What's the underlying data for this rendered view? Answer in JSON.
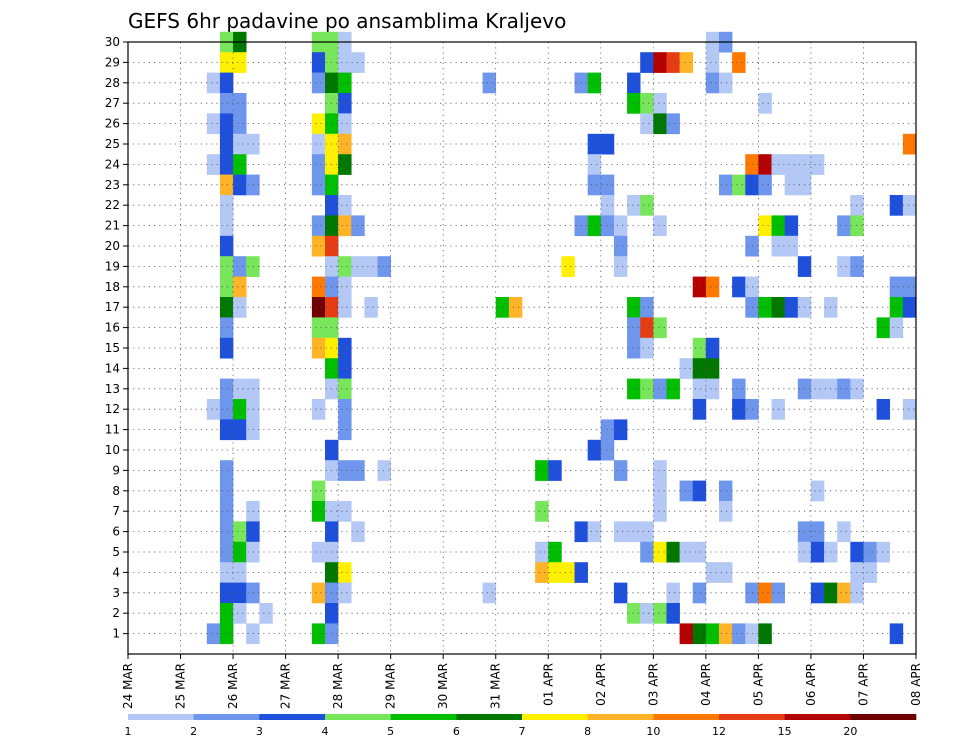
{
  "chart_data": {
    "type": "heatmap",
    "title": "GEFS 6hr padavine po ansamblima Kraljevo",
    "ylim": [
      0,
      30
    ],
    "yticks": [
      "1",
      "2",
      "3",
      "4",
      "5",
      "6",
      "7",
      "8",
      "9",
      "10",
      "11",
      "12",
      "13",
      "14",
      "15",
      "16",
      "17",
      "18",
      "19",
      "20",
      "21",
      "22",
      "23",
      "24",
      "25",
      "26",
      "27",
      "28",
      "29",
      "30"
    ],
    "x_ticks": [
      "24 MAR",
      "25 MAR",
      "26 MAR",
      "27 MAR",
      "28 MAR",
      "29 MAR",
      "30 MAR",
      "31 MAR",
      "01 APR",
      "02 APR",
      "03 APR",
      "04 APR",
      "05 APR",
      "06 APR",
      "07 APR",
      "08 APR"
    ],
    "x_unit": "6-hour step",
    "n_steps": 60,
    "legend": {
      "labels": [
        "1",
        "2",
        "3",
        "4",
        "5",
        "6",
        "7",
        "8",
        "10",
        "12",
        "15",
        "20"
      ],
      "colors": [
        "#b4c8f5",
        "#6e96ec",
        "#1e50dc",
        "#78e65a",
        "#00be00",
        "#007800",
        "#fff000",
        "#ffb428",
        "#ff7800",
        "#e63c14",
        "#b40000",
        "#6e0000"
      ]
    },
    "grid": true,
    "cells": [
      [
        7,
        30,
        4
      ],
      [
        8,
        30,
        6
      ],
      [
        14,
        30,
        4
      ],
      [
        15,
        30,
        4
      ],
      [
        16,
        30,
        1
      ],
      [
        44,
        30,
        1
      ],
      [
        45,
        30,
        2
      ],
      [
        7,
        29,
        7
      ],
      [
        8,
        29,
        7
      ],
      [
        14,
        29,
        3
      ],
      [
        15,
        29,
        4
      ],
      [
        16,
        29,
        1
      ],
      [
        17,
        29,
        1
      ],
      [
        39,
        29,
        3
      ],
      [
        40,
        29,
        11
      ],
      [
        41,
        29,
        10
      ],
      [
        42,
        29,
        8
      ],
      [
        44,
        29,
        1
      ],
      [
        46,
        29,
        9
      ],
      [
        6,
        28,
        1
      ],
      [
        7,
        28,
        3
      ],
      [
        14,
        28,
        2
      ],
      [
        15,
        28,
        6
      ],
      [
        16,
        28,
        5
      ],
      [
        27,
        28,
        2
      ],
      [
        34,
        28,
        2
      ],
      [
        35,
        28,
        5
      ],
      [
        38,
        28,
        3
      ],
      [
        44,
        28,
        2
      ],
      [
        45,
        28,
        1
      ],
      [
        7,
        27,
        2
      ],
      [
        8,
        27,
        2
      ],
      [
        15,
        27,
        4
      ],
      [
        16,
        27,
        3
      ],
      [
        38,
        27,
        5
      ],
      [
        39,
        27,
        4
      ],
      [
        40,
        27,
        1
      ],
      [
        48,
        27,
        1
      ],
      [
        6,
        26,
        1
      ],
      [
        7,
        26,
        3
      ],
      [
        8,
        26,
        2
      ],
      [
        14,
        26,
        7
      ],
      [
        15,
        26,
        5
      ],
      [
        16,
        26,
        1
      ],
      [
        39,
        26,
        1
      ],
      [
        40,
        26,
        6
      ],
      [
        41,
        26,
        2
      ],
      [
        7,
        25,
        3
      ],
      [
        8,
        25,
        1
      ],
      [
        9,
        25,
        1
      ],
      [
        14,
        25,
        1
      ],
      [
        15,
        25,
        7
      ],
      [
        16,
        25,
        8
      ],
      [
        35,
        25,
        3
      ],
      [
        36,
        25,
        3
      ],
      [
        59,
        25,
        9
      ],
      [
        6,
        24,
        1
      ],
      [
        7,
        24,
        3
      ],
      [
        8,
        24,
        5
      ],
      [
        14,
        24,
        2
      ],
      [
        15,
        24,
        7
      ],
      [
        16,
        24,
        6
      ],
      [
        35,
        24,
        1
      ],
      [
        47,
        24,
        9
      ],
      [
        48,
        24,
        11
      ],
      [
        49,
        24,
        1
      ],
      [
        50,
        24,
        1
      ],
      [
        51,
        24,
        1
      ],
      [
        52,
        24,
        1
      ],
      [
        7,
        23,
        8
      ],
      [
        8,
        23,
        3
      ],
      [
        9,
        23,
        2
      ],
      [
        14,
        23,
        2
      ],
      [
        15,
        23,
        5
      ],
      [
        35,
        23,
        2
      ],
      [
        36,
        23,
        2
      ],
      [
        45,
        23,
        2
      ],
      [
        46,
        23,
        4
      ],
      [
        47,
        23,
        3
      ],
      [
        48,
        23,
        2
      ],
      [
        50,
        23,
        1
      ],
      [
        51,
        23,
        1
      ],
      [
        7,
        22,
        1
      ],
      [
        15,
        22,
        3
      ],
      [
        16,
        22,
        1
      ],
      [
        36,
        22,
        1
      ],
      [
        38,
        22,
        1
      ],
      [
        39,
        22,
        4
      ],
      [
        55,
        22,
        1
      ],
      [
        58,
        22,
        3
      ],
      [
        59,
        22,
        1
      ],
      [
        7,
        21,
        1
      ],
      [
        14,
        21,
        2
      ],
      [
        15,
        21,
        6
      ],
      [
        16,
        21,
        8
      ],
      [
        17,
        21,
        2
      ],
      [
        34,
        21,
        2
      ],
      [
        35,
        21,
        5
      ],
      [
        36,
        21,
        2
      ],
      [
        37,
        21,
        1
      ],
      [
        40,
        21,
        1
      ],
      [
        48,
        21,
        7
      ],
      [
        49,
        21,
        5
      ],
      [
        50,
        21,
        3
      ],
      [
        54,
        21,
        2
      ],
      [
        55,
        21,
        4
      ],
      [
        7,
        20,
        3
      ],
      [
        14,
        20,
        8
      ],
      [
        15,
        20,
        10
      ],
      [
        37,
        20,
        2
      ],
      [
        47,
        20,
        2
      ],
      [
        49,
        20,
        1
      ],
      [
        50,
        20,
        1
      ],
      [
        7,
        19,
        4
      ],
      [
        8,
        19,
        2
      ],
      [
        9,
        19,
        4
      ],
      [
        15,
        19,
        1
      ],
      [
        16,
        19,
        4
      ],
      [
        17,
        19,
        1
      ],
      [
        18,
        19,
        1
      ],
      [
        19,
        19,
        2
      ],
      [
        33,
        19,
        7
      ],
      [
        37,
        19,
        1
      ],
      [
        51,
        19,
        3
      ],
      [
        54,
        19,
        1
      ],
      [
        55,
        19,
        2
      ],
      [
        7,
        18,
        4
      ],
      [
        8,
        18,
        8
      ],
      [
        14,
        18,
        9
      ],
      [
        15,
        18,
        2
      ],
      [
        16,
        18,
        1
      ],
      [
        43,
        18,
        11
      ],
      [
        44,
        18,
        9
      ],
      [
        46,
        18,
        3
      ],
      [
        47,
        18,
        1
      ],
      [
        58,
        18,
        2
      ],
      [
        59,
        18,
        2
      ],
      [
        7,
        17,
        6
      ],
      [
        8,
        17,
        1
      ],
      [
        14,
        17,
        12
      ],
      [
        15,
        17,
        10
      ],
      [
        16,
        17,
        1
      ],
      [
        18,
        17,
        1
      ],
      [
        28,
        17,
        5
      ],
      [
        29,
        17,
        8
      ],
      [
        38,
        17,
        5
      ],
      [
        39,
        17,
        2
      ],
      [
        47,
        17,
        2
      ],
      [
        48,
        17,
        5
      ],
      [
        49,
        17,
        6
      ],
      [
        50,
        17,
        3
      ],
      [
        51,
        17,
        1
      ],
      [
        53,
        17,
        1
      ],
      [
        58,
        17,
        5
      ],
      [
        59,
        17,
        3
      ],
      [
        7,
        16,
        2
      ],
      [
        14,
        16,
        4
      ],
      [
        15,
        16,
        4
      ],
      [
        38,
        16,
        2
      ],
      [
        39,
        16,
        10
      ],
      [
        40,
        16,
        4
      ],
      [
        57,
        16,
        5
      ],
      [
        58,
        16,
        1
      ],
      [
        7,
        15,
        3
      ],
      [
        14,
        15,
        8
      ],
      [
        15,
        15,
        7
      ],
      [
        16,
        15,
        3
      ],
      [
        38,
        15,
        2
      ],
      [
        39,
        15,
        1
      ],
      [
        43,
        15,
        4
      ],
      [
        44,
        15,
        3
      ],
      [
        15,
        14,
        5
      ],
      [
        16,
        14,
        3
      ],
      [
        42,
        14,
        1
      ],
      [
        43,
        14,
        6
      ],
      [
        44,
        14,
        6
      ],
      [
        7,
        13,
        2
      ],
      [
        8,
        13,
        1
      ],
      [
        9,
        13,
        1
      ],
      [
        15,
        13,
        1
      ],
      [
        16,
        13,
        4
      ],
      [
        38,
        13,
        5
      ],
      [
        39,
        13,
        4
      ],
      [
        40,
        13,
        2
      ],
      [
        41,
        13,
        5
      ],
      [
        43,
        13,
        1
      ],
      [
        44,
        13,
        1
      ],
      [
        46,
        13,
        2
      ],
      [
        51,
        13,
        2
      ],
      [
        52,
        13,
        1
      ],
      [
        53,
        13,
        1
      ],
      [
        54,
        13,
        2
      ],
      [
        55,
        13,
        1
      ],
      [
        6,
        12,
        1
      ],
      [
        7,
        12,
        2
      ],
      [
        8,
        12,
        5
      ],
      [
        9,
        12,
        1
      ],
      [
        14,
        12,
        1
      ],
      [
        16,
        12,
        2
      ],
      [
        43,
        12,
        3
      ],
      [
        46,
        12,
        3
      ],
      [
        47,
        12,
        2
      ],
      [
        49,
        12,
        1
      ],
      [
        57,
        12,
        3
      ],
      [
        59,
        12,
        1
      ],
      [
        7,
        11,
        3
      ],
      [
        8,
        11,
        3
      ],
      [
        9,
        11,
        1
      ],
      [
        16,
        11,
        2
      ],
      [
        36,
        11,
        2
      ],
      [
        37,
        11,
        3
      ],
      [
        15,
        10,
        3
      ],
      [
        35,
        10,
        3
      ],
      [
        36,
        10,
        2
      ],
      [
        7,
        9,
        2
      ],
      [
        15,
        9,
        1
      ],
      [
        16,
        9,
        2
      ],
      [
        17,
        9,
        2
      ],
      [
        19,
        9,
        1
      ],
      [
        31,
        9,
        5
      ],
      [
        32,
        9,
        3
      ],
      [
        37,
        9,
        2
      ],
      [
        40,
        9,
        1
      ],
      [
        7,
        8,
        2
      ],
      [
        14,
        8,
        4
      ],
      [
        40,
        8,
        1
      ],
      [
        42,
        8,
        2
      ],
      [
        43,
        8,
        3
      ],
      [
        45,
        8,
        2
      ],
      [
        52,
        8,
        1
      ],
      [
        7,
        7,
        2
      ],
      [
        9,
        7,
        1
      ],
      [
        14,
        7,
        5
      ],
      [
        15,
        7,
        1
      ],
      [
        16,
        7,
        1
      ],
      [
        31,
        7,
        4
      ],
      [
        40,
        7,
        1
      ],
      [
        45,
        7,
        1
      ],
      [
        7,
        6,
        2
      ],
      [
        8,
        6,
        4
      ],
      [
        9,
        6,
        3
      ],
      [
        15,
        6,
        3
      ],
      [
        17,
        6,
        1
      ],
      [
        34,
        6,
        3
      ],
      [
        35,
        6,
        1
      ],
      [
        37,
        6,
        1
      ],
      [
        38,
        6,
        1
      ],
      [
        39,
        6,
        1
      ],
      [
        51,
        6,
        2
      ],
      [
        52,
        6,
        2
      ],
      [
        54,
        6,
        1
      ],
      [
        7,
        5,
        2
      ],
      [
        8,
        5,
        5
      ],
      [
        9,
        5,
        1
      ],
      [
        14,
        5,
        1
      ],
      [
        15,
        5,
        1
      ],
      [
        31,
        5,
        1
      ],
      [
        32,
        5,
        5
      ],
      [
        39,
        5,
        2
      ],
      [
        40,
        5,
        7
      ],
      [
        41,
        5,
        6
      ],
      [
        42,
        5,
        1
      ],
      [
        43,
        5,
        1
      ],
      [
        51,
        5,
        1
      ],
      [
        52,
        5,
        3
      ],
      [
        53,
        5,
        1
      ],
      [
        55,
        5,
        3
      ],
      [
        56,
        5,
        2
      ],
      [
        57,
        5,
        1
      ],
      [
        7,
        4,
        1
      ],
      [
        8,
        4,
        1
      ],
      [
        15,
        4,
        6
      ],
      [
        16,
        4,
        7
      ],
      [
        31,
        4,
        8
      ],
      [
        32,
        4,
        7
      ],
      [
        33,
        4,
        7
      ],
      [
        34,
        4,
        3
      ],
      [
        44,
        4,
        1
      ],
      [
        45,
        4,
        1
      ],
      [
        55,
        4,
        1
      ],
      [
        56,
        4,
        1
      ],
      [
        7,
        3,
        3
      ],
      [
        8,
        3,
        3
      ],
      [
        9,
        3,
        2
      ],
      [
        14,
        3,
        8
      ],
      [
        15,
        3,
        2
      ],
      [
        16,
        3,
        1
      ],
      [
        27,
        3,
        1
      ],
      [
        37,
        3,
        3
      ],
      [
        41,
        3,
        1
      ],
      [
        43,
        3,
        2
      ],
      [
        47,
        3,
        2
      ],
      [
        48,
        3,
        9
      ],
      [
        49,
        3,
        2
      ],
      [
        52,
        3,
        3
      ],
      [
        53,
        3,
        6
      ],
      [
        54,
        3,
        8
      ],
      [
        55,
        3,
        1
      ],
      [
        7,
        2,
        5
      ],
      [
        8,
        2,
        1
      ],
      [
        10,
        2,
        1
      ],
      [
        15,
        2,
        3
      ],
      [
        38,
        2,
        4
      ],
      [
        39,
        2,
        1
      ],
      [
        40,
        2,
        4
      ],
      [
        41,
        2,
        3
      ],
      [
        6,
        1,
        2
      ],
      [
        7,
        1,
        5
      ],
      [
        9,
        1,
        1
      ],
      [
        14,
        1,
        5
      ],
      [
        15,
        1,
        2
      ],
      [
        42,
        1,
        11
      ],
      [
        43,
        1,
        6
      ],
      [
        44,
        1,
        5
      ],
      [
        45,
        1,
        8
      ],
      [
        46,
        1,
        2
      ],
      [
        47,
        1,
        1
      ],
      [
        48,
        1,
        6
      ],
      [
        58,
        1,
        3
      ]
    ]
  }
}
